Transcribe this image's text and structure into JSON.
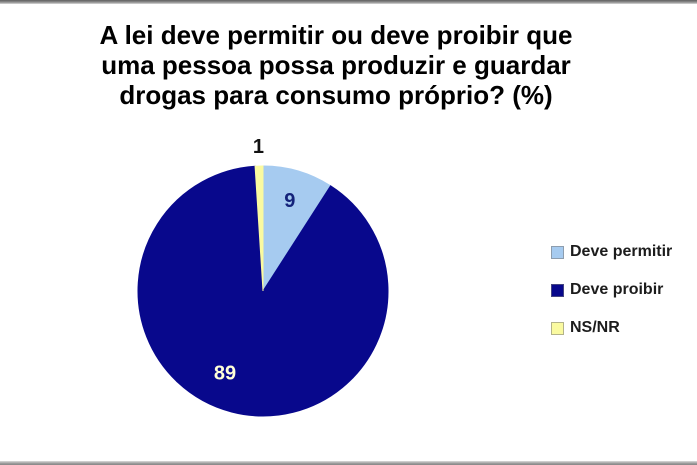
{
  "frame": {
    "background": "#FFFFFF"
  },
  "title": {
    "full": "A lei deve permitir ou deve proibir que uma pessoa possa produzir e guardar drogas para consumo próprio? (%)",
    "lines": [
      "A lei deve permitir ou deve proibir que",
      "uma pessoa possa produzir e guardar",
      "drogas para consumo próprio? (%)"
    ]
  },
  "chart_data": {
    "type": "pie",
    "title": "A lei deve permitir ou deve proibir que uma pessoa possa produzir e guardar drogas para consumo próprio? (%)",
    "unit": "%",
    "direction": "clockwise",
    "start_angle_deg": 0,
    "legend_position": "right",
    "series": [
      {
        "name": "Deve permitir",
        "value": 9,
        "color": "#A6CBF0",
        "label_color": "#14237A",
        "label_position": "inside",
        "label_angle_deg": 16.4,
        "label_radius_frac": 0.76
      },
      {
        "name": "Deve proibir",
        "value": 89,
        "color": "#08088C",
        "label_color": "#FFFFD8",
        "label_position": "inside",
        "label_angle_deg": 205,
        "label_radius_frac": 0.72
      },
      {
        "name": "NS/NR",
        "value": 1,
        "color": "#FAFAA0",
        "label_color": "#111111",
        "label_position": "outside",
        "label_angle_deg": 358.2,
        "label_radius_frac": 1.16
      }
    ]
  }
}
